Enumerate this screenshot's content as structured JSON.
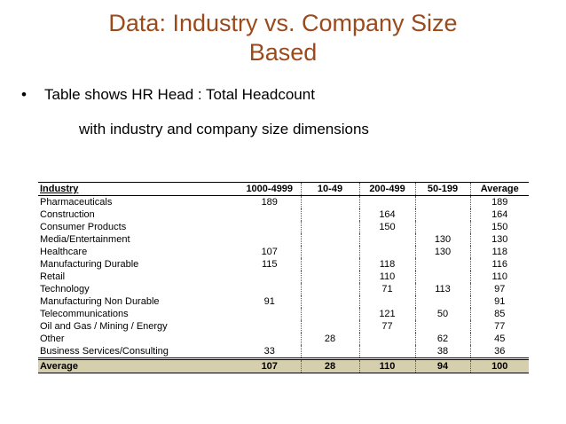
{
  "slide": {
    "title_line1": "Data: Industry vs. Company Size",
    "title_line2": "Based",
    "bullet_symbol": "•",
    "bullet_text": "Table shows HR Head : Total Headcount",
    "sub_text": "with industry and company size dimensions"
  },
  "table": {
    "headers": [
      "Industry",
      "1000-4999",
      "10-49",
      "200-499",
      "50-199",
      "Average"
    ],
    "rows": [
      {
        "industry": "Pharmaceuticals",
        "c1000_4999": "189",
        "c10_49": "",
        "c200_499": "",
        "c50_199": "",
        "average": "189"
      },
      {
        "industry": "Construction",
        "c1000_4999": "",
        "c10_49": "",
        "c200_499": "164",
        "c50_199": "",
        "average": "164"
      },
      {
        "industry": "Consumer Products",
        "c1000_4999": "",
        "c10_49": "",
        "c200_499": "150",
        "c50_199": "",
        "average": "150"
      },
      {
        "industry": "Media/Entertainment",
        "c1000_4999": "",
        "c10_49": "",
        "c200_499": "",
        "c50_199": "130",
        "average": "130"
      },
      {
        "industry": "Healthcare",
        "c1000_4999": "107",
        "c10_49": "",
        "c200_499": "",
        "c50_199": "130",
        "average": "118"
      },
      {
        "industry": "Manufacturing Durable",
        "c1000_4999": "115",
        "c10_49": "",
        "c200_499": "118",
        "c50_199": "",
        "average": "116"
      },
      {
        "industry": "Retail",
        "c1000_4999": "",
        "c10_49": "",
        "c200_499": "110",
        "c50_199": "",
        "average": "110"
      },
      {
        "industry": "Technology",
        "c1000_4999": "",
        "c10_49": "",
        "c200_499": "71",
        "c50_199": "113",
        "average": "97"
      },
      {
        "industry": "Manufacturing Non Durable",
        "c1000_4999": "91",
        "c10_49": "",
        "c200_499": "",
        "c50_199": "",
        "average": "91"
      },
      {
        "industry": "Telecommunications",
        "c1000_4999": "",
        "c10_49": "",
        "c200_499": "121",
        "c50_199": "50",
        "average": "85"
      },
      {
        "industry": "Oil and Gas / Mining / Energy",
        "c1000_4999": "",
        "c10_49": "",
        "c200_499": "77",
        "c50_199": "",
        "average": "77"
      },
      {
        "industry": "Other",
        "c1000_4999": "",
        "c10_49": "28",
        "c200_499": "",
        "c50_199": "62",
        "average": "45"
      },
      {
        "industry": "Business Services/Consulting",
        "c1000_4999": "33",
        "c10_49": "",
        "c200_499": "",
        "c50_199": "38",
        "average": "36"
      }
    ],
    "footer": {
      "industry": "Average",
      "c1000_4999": "107",
      "c10_49": "28",
      "c200_499": "110",
      "c50_199": "94",
      "average": "100"
    },
    "footer_color": "#d6cfae"
  },
  "colors": {
    "title": "#9b4a1c"
  }
}
